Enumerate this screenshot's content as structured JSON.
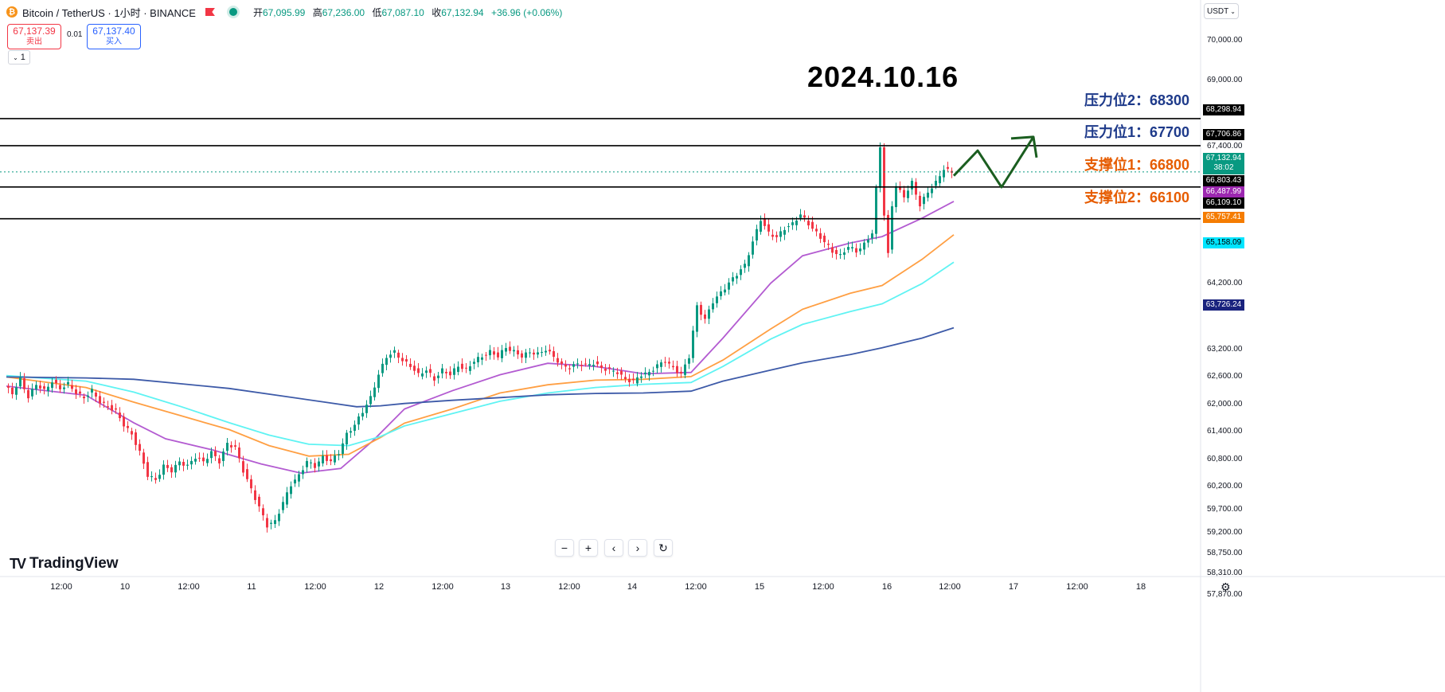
{
  "header": {
    "title": "Bitcoin / TetherUS · 1小时 · BINANCE",
    "open_label": "开",
    "open": "67,095.99",
    "high_label": "高",
    "high": "67,236.00",
    "low_label": "低",
    "low": "67,087.10",
    "close_label": "收",
    "close": "67,132.94",
    "change": "+36.96 (+0.06%)"
  },
  "trade": {
    "sell_price": "67,137.39",
    "sell_label": "卖出",
    "spread": "0.01",
    "buy_price": "67,137.40",
    "buy_label": "买入",
    "collapse_label": "1"
  },
  "currency": "USDT",
  "annotation": {
    "date": "2024.10.16",
    "levels": [
      {
        "label": "压力位2：68300",
        "kind": "resistance"
      },
      {
        "label": "压力位1：67700",
        "kind": "resistance"
      },
      {
        "label": "支撑位1：66800",
        "kind": "support"
      },
      {
        "label": "支撑位2：66100",
        "kind": "support"
      }
    ]
  },
  "price_tags": [
    {
      "text": "68,298.94",
      "color": "#000000"
    },
    {
      "text": "67,706.86",
      "color": "#000000"
    },
    {
      "text": "67,132.94",
      "sub": "38:02",
      "color": "#089981"
    },
    {
      "text": "66,803.43",
      "color": "#000000"
    },
    {
      "text": "66,487.99",
      "color": "#9c27b0"
    },
    {
      "text": "66,109.10",
      "color": "#000000"
    },
    {
      "text": "65,757.41",
      "color": "#f57c00"
    },
    {
      "text": "65,158.09",
      "color": "#00e5ff"
    },
    {
      "text": "63,726.24",
      "color": "#1a237e"
    }
  ],
  "branding": "TradingView",
  "colors": {
    "up": "#089981",
    "down": "#f23645",
    "ma_purple": "#b35bd1",
    "ma_orange": "#ff9f43",
    "ma_cyan": "#5ff3f3",
    "ma_navy": "#3d5aa8",
    "arrow": "#1b5e20"
  },
  "chart_data": {
    "type": "candlestick",
    "title": "Bitcoin / TetherUS · 1小时 · BINANCE",
    "ylim": [
      57870,
      70300
    ],
    "y_ticks": [
      "70,000.00",
      "69,000.00",
      "67,400.00",
      "64,200.00",
      "63,200.00",
      "62,600.00",
      "62,000.00",
      "61,400.00",
      "60,800.00",
      "60,200.00",
      "59,700.00",
      "59,200.00",
      "58,750.00",
      "58,310.00",
      "57,870.00"
    ],
    "x_ticks": [
      "12:00",
      "10",
      "12:00",
      "11",
      "12:00",
      "12",
      "12:00",
      "13",
      "12:00",
      "14",
      "12:00",
      "15",
      "12:00",
      "16",
      "12:00",
      "17",
      "12:00",
      "18"
    ],
    "horizontal_levels": [
      68298.94,
      67706.86,
      66803.43,
      66109.1
    ],
    "last_price": 67132.94,
    "close_path": [
      [
        0,
        62450
      ],
      [
        10,
        62300
      ],
      [
        20,
        62600
      ],
      [
        30,
        62200
      ],
      [
        40,
        62500
      ],
      [
        50,
        62350
      ],
      [
        60,
        62550
      ],
      [
        70,
        62400
      ],
      [
        80,
        62500
      ],
      [
        90,
        62300
      ],
      [
        100,
        62200
      ],
      [
        110,
        62350
      ],
      [
        120,
        62100
      ],
      [
        130,
        62000
      ],
      [
        140,
        61900
      ],
      [
        150,
        61600
      ],
      [
        160,
        61400
      ],
      [
        170,
        61000
      ],
      [
        180,
        60500
      ],
      [
        190,
        60400
      ],
      [
        200,
        60700
      ],
      [
        210,
        60600
      ],
      [
        220,
        60800
      ],
      [
        230,
        60700
      ],
      [
        240,
        60900
      ],
      [
        250,
        60800
      ],
      [
        260,
        61000
      ],
      [
        270,
        60800
      ],
      [
        280,
        61200
      ],
      [
        290,
        61100
      ],
      [
        300,
        60600
      ],
      [
        310,
        60200
      ],
      [
        320,
        59800
      ],
      [
        330,
        59400
      ],
      [
        340,
        59500
      ],
      [
        350,
        59900
      ],
      [
        360,
        60300
      ],
      [
        370,
        60500
      ],
      [
        380,
        60800
      ],
      [
        390,
        60700
      ],
      [
        400,
        60900
      ],
      [
        410,
        60800
      ],
      [
        420,
        61000
      ],
      [
        430,
        61400
      ],
      [
        440,
        61600
      ],
      [
        450,
        61900
      ],
      [
        460,
        62200
      ],
      [
        470,
        62700
      ],
      [
        480,
        63100
      ],
      [
        490,
        63200
      ],
      [
        500,
        63000
      ],
      [
        510,
        62900
      ],
      [
        520,
        62700
      ],
      [
        530,
        62800
      ],
      [
        540,
        62600
      ],
      [
        550,
        62800
      ],
      [
        560,
        62700
      ],
      [
        570,
        62900
      ],
      [
        580,
        62800
      ],
      [
        590,
        63000
      ],
      [
        600,
        63100
      ],
      [
        610,
        63200
      ],
      [
        620,
        63100
      ],
      [
        630,
        63300
      ],
      [
        640,
        63200
      ],
      [
        650,
        63100
      ],
      [
        660,
        63200
      ],
      [
        670,
        63150
      ],
      [
        680,
        63250
      ],
      [
        690,
        63100
      ],
      [
        700,
        62900
      ],
      [
        710,
        62850
      ],
      [
        720,
        62950
      ],
      [
        730,
        62900
      ],
      [
        740,
        62950
      ],
      [
        750,
        62850
      ],
      [
        760,
        62800
      ],
      [
        770,
        62750
      ],
      [
        780,
        62600
      ],
      [
        790,
        62550
      ],
      [
        800,
        62700
      ],
      [
        810,
        62750
      ],
      [
        820,
        62900
      ],
      [
        830,
        63000
      ],
      [
        840,
        62850
      ],
      [
        850,
        62700
      ],
      [
        860,
        63100
      ],
      [
        870,
        64200
      ],
      [
        880,
        63900
      ],
      [
        890,
        64300
      ],
      [
        900,
        64500
      ],
      [
        910,
        64700
      ],
      [
        920,
        64900
      ],
      [
        930,
        65100
      ],
      [
        940,
        65600
      ],
      [
        950,
        66100
      ],
      [
        960,
        65800
      ],
      [
        970,
        65700
      ],
      [
        980,
        65900
      ],
      [
        990,
        66000
      ],
      [
        1000,
        66200
      ],
      [
        1010,
        66000
      ],
      [
        1020,
        65800
      ],
      [
        1030,
        65600
      ],
      [
        1040,
        65400
      ],
      [
        1050,
        65300
      ],
      [
        1060,
        65500
      ],
      [
        1070,
        65400
      ],
      [
        1080,
        65550
      ],
      [
        1090,
        65800
      ],
      [
        1100,
        67700
      ],
      [
        1105,
        66200
      ],
      [
        1110,
        65400
      ],
      [
        1115,
        66400
      ],
      [
        1120,
        66800
      ],
      [
        1130,
        66600
      ],
      [
        1140,
        66900
      ],
      [
        1150,
        66400
      ],
      [
        1160,
        66700
      ],
      [
        1170,
        66900
      ],
      [
        1180,
        67200
      ],
      [
        1190,
        67130
      ]
    ],
    "moving_averages": [
      {
        "color": "#b35bd1",
        "last": 66487.99,
        "points": [
          [
            0,
            62450
          ],
          [
            100,
            62250
          ],
          [
            160,
            61650
          ],
          [
            200,
            61300
          ],
          [
            260,
            61050
          ],
          [
            320,
            60750
          ],
          [
            370,
            60550
          ],
          [
            420,
            60650
          ],
          [
            460,
            61250
          ],
          [
            500,
            61950
          ],
          [
            560,
            62350
          ],
          [
            620,
            62700
          ],
          [
            680,
            62950
          ],
          [
            740,
            62880
          ],
          [
            800,
            62720
          ],
          [
            860,
            62750
          ],
          [
            900,
            63500
          ],
          [
            960,
            64700
          ],
          [
            1000,
            65300
          ],
          [
            1060,
            65580
          ],
          [
            1100,
            65720
          ],
          [
            1150,
            66120
          ],
          [
            1190,
            66490
          ]
        ]
      },
      {
        "color": "#ff9f43",
        "last": 65757.41,
        "points": [
          [
            0,
            62650
          ],
          [
            100,
            62420
          ],
          [
            160,
            62100
          ],
          [
            220,
            61800
          ],
          [
            280,
            61500
          ],
          [
            330,
            61150
          ],
          [
            380,
            60920
          ],
          [
            430,
            60960
          ],
          [
            470,
            61330
          ],
          [
            500,
            61640
          ],
          [
            560,
            61950
          ],
          [
            620,
            62300
          ],
          [
            680,
            62480
          ],
          [
            740,
            62580
          ],
          [
            800,
            62600
          ],
          [
            860,
            62660
          ],
          [
            900,
            63020
          ],
          [
            960,
            63700
          ],
          [
            1000,
            64130
          ],
          [
            1060,
            64480
          ],
          [
            1100,
            64650
          ],
          [
            1150,
            65220
          ],
          [
            1190,
            65760
          ]
        ]
      },
      {
        "color": "#5ff3f3",
        "last": 65158.09,
        "points": [
          [
            0,
            62680
          ],
          [
            100,
            62560
          ],
          [
            160,
            62320
          ],
          [
            220,
            62000
          ],
          [
            280,
            61650
          ],
          [
            330,
            61380
          ],
          [
            380,
            61180
          ],
          [
            430,
            61150
          ],
          [
            470,
            61350
          ],
          [
            500,
            61580
          ],
          [
            560,
            61850
          ],
          [
            620,
            62120
          ],
          [
            680,
            62300
          ],
          [
            740,
            62420
          ],
          [
            800,
            62490
          ],
          [
            860,
            62530
          ],
          [
            900,
            62880
          ],
          [
            960,
            63480
          ],
          [
            1000,
            63800
          ],
          [
            1060,
            64080
          ],
          [
            1100,
            64250
          ],
          [
            1150,
            64690
          ],
          [
            1190,
            65160
          ]
        ]
      },
      {
        "color": "#3d5aa8",
        "last": 63726.24,
        "points": [
          [
            0,
            62650
          ],
          [
            100,
            62630
          ],
          [
            160,
            62600
          ],
          [
            220,
            62500
          ],
          [
            280,
            62400
          ],
          [
            340,
            62250
          ],
          [
            400,
            62100
          ],
          [
            440,
            62000
          ],
          [
            470,
            62020
          ],
          [
            500,
            62070
          ],
          [
            560,
            62140
          ],
          [
            620,
            62200
          ],
          [
            680,
            62260
          ],
          [
            740,
            62290
          ],
          [
            800,
            62300
          ],
          [
            860,
            62340
          ],
          [
            900,
            62560
          ],
          [
            960,
            62800
          ],
          [
            1000,
            62960
          ],
          [
            1060,
            63140
          ],
          [
            1100,
            63290
          ],
          [
            1150,
            63500
          ],
          [
            1190,
            63726
          ]
        ]
      }
    ],
    "projection": [
      [
        1190,
        67050
      ],
      [
        1220,
        67600
      ],
      [
        1250,
        66800
      ],
      [
        1290,
        67900
      ]
    ]
  }
}
